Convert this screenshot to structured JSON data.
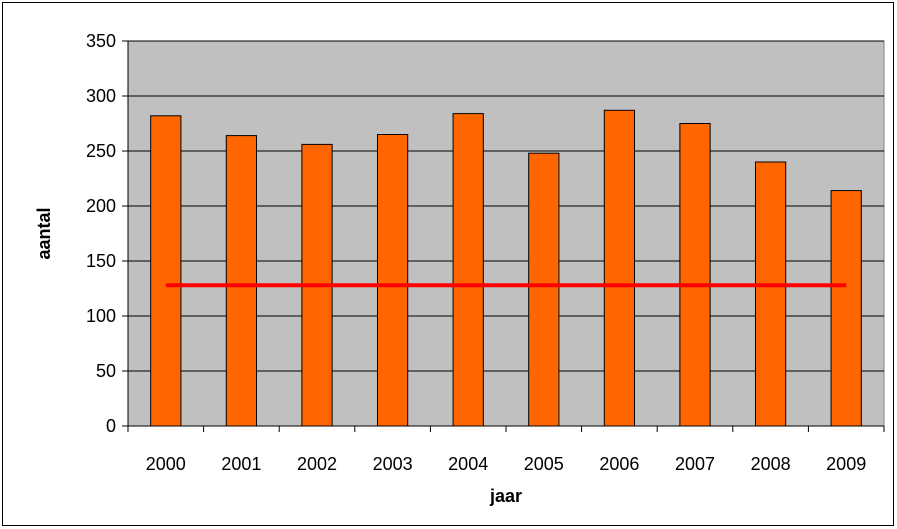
{
  "chart_data": {
    "type": "bar",
    "title": "",
    "xlabel": "jaar",
    "ylabel": "aantal",
    "categories": [
      "2000",
      "2001",
      "2002",
      "2003",
      "2004",
      "2005",
      "2006",
      "2007",
      "2008",
      "2009"
    ],
    "series": [
      {
        "values": [
          282,
          264,
          256,
          265,
          284,
          248,
          287,
          275,
          240,
          214
        ],
        "color": "#FF6600"
      }
    ],
    "reference_line": {
      "value": 128,
      "color": "#FF0000"
    },
    "ylim": [
      0,
      350
    ],
    "yticks": [
      0,
      50,
      100,
      150,
      200,
      250,
      300,
      350
    ],
    "grid": true,
    "plot_background": "#C0C0C0",
    "legend": "none"
  }
}
